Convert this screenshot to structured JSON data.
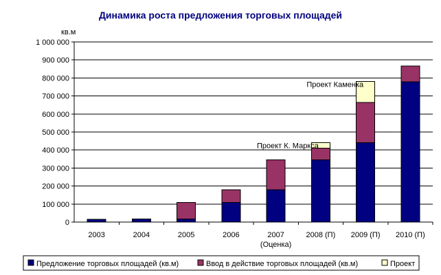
{
  "chart_data": {
    "type": "bar",
    "stacked": true,
    "title": "Динамика роста предложения торговых площадей",
    "ylabel": "кв.м",
    "xlabel": "",
    "ylim": [
      0,
      1000000
    ],
    "yticks": [
      0,
      100000,
      200000,
      300000,
      400000,
      500000,
      600000,
      700000,
      800000,
      900000,
      1000000
    ],
    "ytick_labels": [
      "0",
      "100 000",
      "200 000",
      "300 000",
      "400 000",
      "500 000",
      "600 000",
      "700 000",
      "800 000",
      "900 000",
      "1 000 000"
    ],
    "categories": [
      {
        "label": "2003",
        "sublabel": ""
      },
      {
        "label": "2004",
        "sublabel": ""
      },
      {
        "label": "2005",
        "sublabel": ""
      },
      {
        "label": "2006",
        "sublabel": ""
      },
      {
        "label": "2007",
        "sublabel": "(Оценка)"
      },
      {
        "label": "2008 (П)",
        "sublabel": ""
      },
      {
        "label": "2009 (П)",
        "sublabel": ""
      },
      {
        "label": "2010 (П)",
        "sublabel": ""
      }
    ],
    "grid": "horizontal",
    "legend_position": "bottom",
    "series": [
      {
        "name": "Предложение торговых площадей (кв.м)",
        "color": "#000080",
        "values": [
          15000,
          18000,
          18000,
          108000,
          180000,
          345000,
          440000,
          778000
        ]
      },
      {
        "name": "Ввод в действие торговых площадей (кв.м)",
        "color": "#993366",
        "values": [
          0,
          0,
          90000,
          72000,
          165000,
          65000,
          225000,
          88000
        ]
      },
      {
        "name": "Проект",
        "color": "#FFFFCC",
        "values": [
          0,
          0,
          0,
          0,
          0,
          30000,
          115000,
          0
        ]
      }
    ],
    "annotations": [
      {
        "text": "Проект К. Маркса",
        "category_index": 5
      },
      {
        "text": "Проект Каменка",
        "category_index": 6
      }
    ]
  }
}
